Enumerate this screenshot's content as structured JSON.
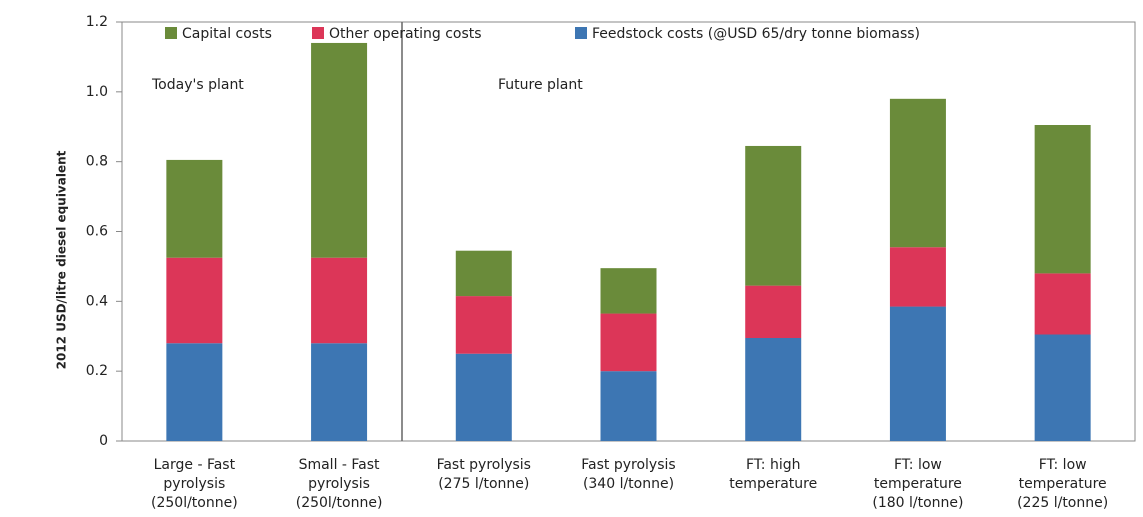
{
  "chart_data": {
    "type": "stacked_bar",
    "y_label": "2012 USD/litre diesel equivalent",
    "categories": [
      [
        "Large - Fast",
        "pyrolysis",
        "(250l/tonne)"
      ],
      [
        "Small - Fast",
        "pyrolysis",
        "(250l/tonne)"
      ],
      [
        "Fast pyrolysis",
        "(275 l/tonne)"
      ],
      [
        "Fast pyrolysis",
        "(340 l/tonne)"
      ],
      [
        "FT: high",
        "temperature"
      ],
      [
        "FT: low",
        "temperature",
        "(180 l/tonne)"
      ],
      [
        "FT: low",
        "temperature",
        "(225 l/tonne)"
      ]
    ],
    "series": [
      {
        "name": "Feedstock costs (@USD 65/dry tonne biomass)",
        "color": "#3d76b3",
        "values": [
          0.28,
          0.28,
          0.25,
          0.2,
          0.295,
          0.385,
          0.305
        ]
      },
      {
        "name": "Other operating costs",
        "color": "#dc3658",
        "values": [
          0.245,
          0.245,
          0.165,
          0.165,
          0.15,
          0.17,
          0.175
        ]
      },
      {
        "name": "Capital costs",
        "color": "#6a8b3a",
        "values": [
          0.28,
          0.615,
          0.13,
          0.13,
          0.4,
          0.425,
          0.425
        ]
      }
    ],
    "annotations": [
      "Today's plant",
      "Future plant"
    ],
    "ylim": [
      0,
      1.2
    ],
    "yticks": [
      0,
      0.2,
      0.4,
      0.6,
      0.8,
      {
        "value": 1,
        "label": "1.0"
      },
      1.2
    ]
  }
}
